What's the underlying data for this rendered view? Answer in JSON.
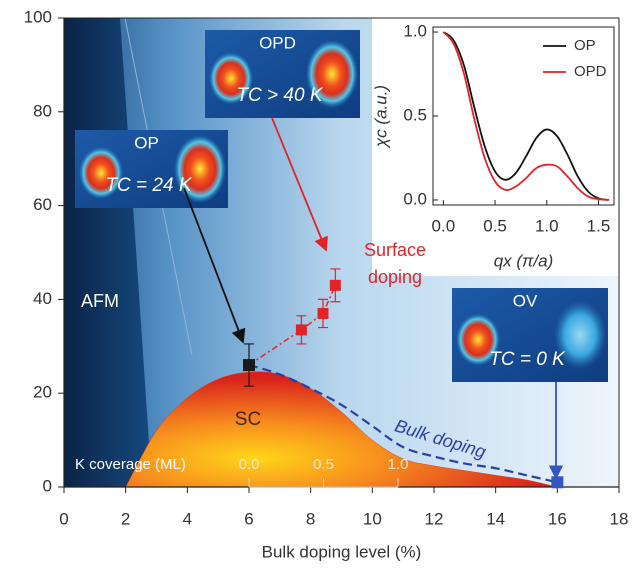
{
  "chart_data": [
    {
      "type": "phase_diagram",
      "x_label": "Bulk doping level (%)",
      "xlim": [
        0,
        18
      ],
      "xticks": [
        0,
        2,
        4,
        6,
        8,
        10,
        12,
        14,
        16,
        18
      ],
      "ylim": [
        0,
        100
      ],
      "yticks": [
        0,
        20,
        40,
        60,
        80,
        100
      ],
      "regions": [
        {
          "name": "AFM"
        },
        {
          "name": "SC",
          "color": "#e23a1c",
          "x": [
            2,
            3,
            4,
            5,
            6,
            7,
            8,
            9,
            10,
            11,
            12,
            13,
            14,
            15,
            16
          ],
          "values": [
            0,
            12,
            19,
            23,
            24.5,
            24,
            21,
            16,
            10,
            6,
            4.5,
            3.5,
            2.5,
            1.5,
            0
          ]
        }
      ],
      "series": [
        {
          "name": "Bulk doping",
          "color": "#2b3fa8",
          "x": [
            6,
            7,
            8,
            9,
            10,
            11,
            12,
            13,
            14,
            15,
            16
          ],
          "values": [
            26,
            24,
            21,
            17.5,
            13,
            8.5,
            6.5,
            5,
            4,
            2.5,
            1
          ]
        },
        {
          "name": "Surface doping",
          "color": "#e0242a",
          "x": [
            7.7,
            8.4,
            8.8
          ],
          "values": [
            33.5,
            37,
            43
          ],
          "errors": [
            3,
            3,
            3.5
          ]
        }
      ],
      "points": [
        {
          "name": "OP",
          "x": 6,
          "value": 26,
          "error": 4.5,
          "color": "#1a1a1a"
        },
        {
          "name": "OV",
          "x": 16,
          "value": 1,
          "color": "#3555c0"
        }
      ],
      "panels": [
        {
          "label": "OPD",
          "tc": "TC > 40 K"
        },
        {
          "label": "OP",
          "tc": "TC = 24 K"
        },
        {
          "label": "OV",
          "tc": "TC = 0 K"
        }
      ],
      "x2_label": "K coverage (ML)",
      "x2lim": [
        0,
        1
      ],
      "x2ticks": [
        {
          "value": 0,
          "label": "0.0"
        },
        0.5,
        {
          "value": 1,
          "label": "1.0"
        }
      ]
    },
    {
      "type": "line",
      "x_label": "qx (π/a)",
      "y_label": "χc (a.u.)",
      "xlim": [
        -0.1,
        1.65
      ],
      "xticks": [
        {
          "value": 0,
          "label": "0.0"
        },
        0.5,
        {
          "value": 1,
          "label": "1.0"
        },
        1.5
      ],
      "ylim": [
        -0.03,
        1.03
      ],
      "yticks": [
        {
          "value": 0,
          "label": "0.0"
        },
        0.5,
        {
          "value": 1,
          "label": "1.0"
        }
      ],
      "legend": "upper right",
      "x": [
        0,
        0.1,
        0.2,
        0.3,
        0.4,
        0.5,
        0.6,
        0.7,
        0.8,
        0.9,
        1.0,
        1.1,
        1.2,
        1.3,
        1.4,
        1.5,
        1.6
      ],
      "series": [
        {
          "name": "OP",
          "color": "#111111",
          "values": [
            1.0,
            0.95,
            0.8,
            0.55,
            0.32,
            0.17,
            0.12,
            0.16,
            0.26,
            0.37,
            0.42,
            0.38,
            0.27,
            0.14,
            0.05,
            0.01,
            0.0
          ]
        },
        {
          "name": "OPD",
          "color": "#e0242a",
          "values": [
            1.0,
            0.93,
            0.75,
            0.48,
            0.25,
            0.11,
            0.06,
            0.08,
            0.13,
            0.19,
            0.21,
            0.2,
            0.14,
            0.07,
            0.02,
            0.005,
            0.0
          ]
        }
      ]
    }
  ]
}
